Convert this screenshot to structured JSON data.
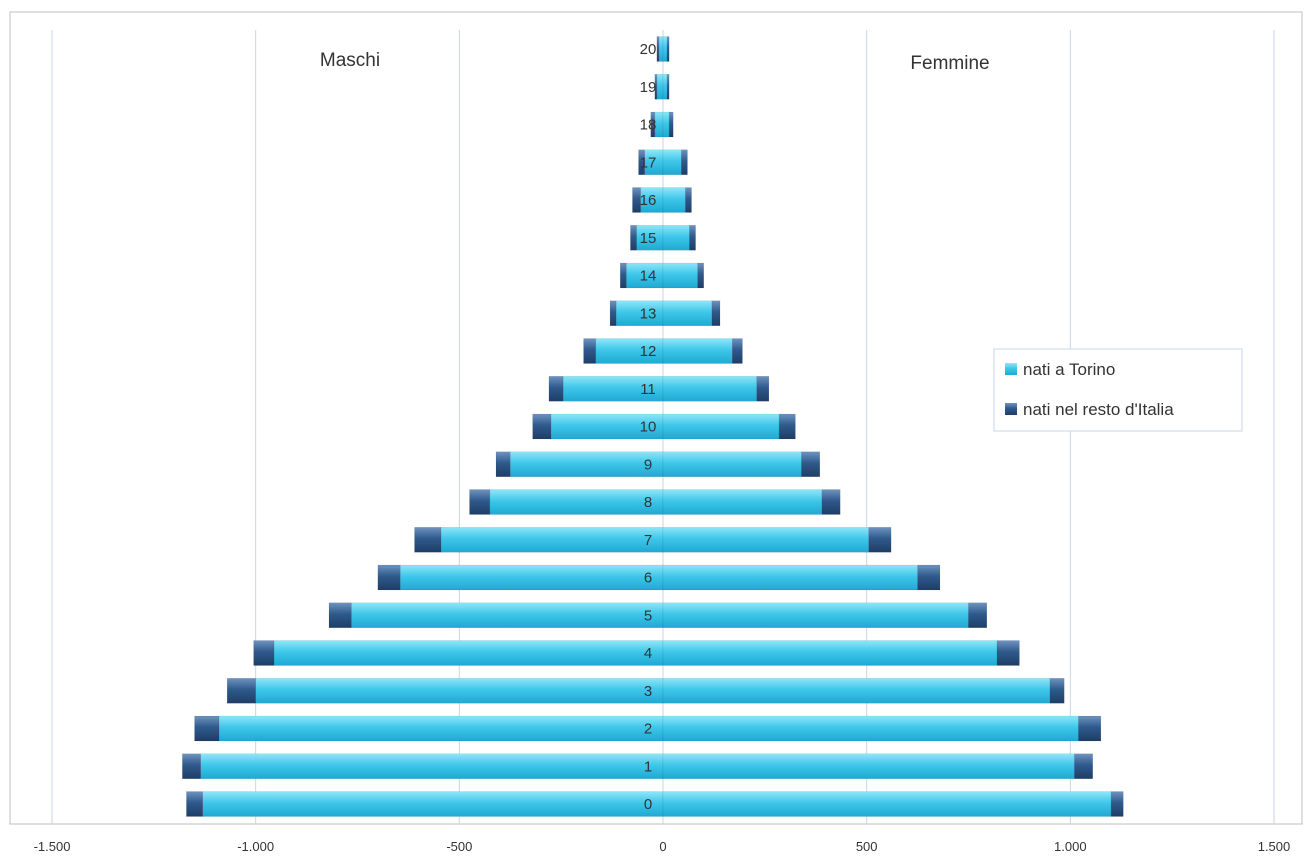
{
  "colors": {
    "torino": "#35C3E8",
    "torino_highlight": "#7FDFF6",
    "resto": "#2E5686",
    "resto_highlight": "#5C82B0",
    "grid": "#C9D5EA",
    "axis_text": "#333333",
    "label_text": "#333333"
  },
  "chart_data": {
    "type": "bar",
    "orientation": "horizontal",
    "stacked": true,
    "categories": [
      "0",
      "1",
      "2",
      "3",
      "4",
      "5",
      "6",
      "7",
      "8",
      "9",
      "10",
      "11",
      "12",
      "13",
      "14",
      "15",
      "16",
      "17",
      "18",
      "19",
      "20"
    ],
    "side_labels": {
      "left": "Maschi",
      "right": "Femmine"
    },
    "series": [
      {
        "name": "nati a Torino",
        "color": "#35C3E8",
        "left_values": [
          -1130,
          -1135,
          -1090,
          -1000,
          -955,
          -765,
          -645,
          -545,
          -425,
          -375,
          -275,
          -245,
          -165,
          -115,
          -90,
          -65,
          -55,
          -45,
          -20,
          -15,
          -10
        ],
        "right_values": [
          1100,
          1010,
          1020,
          950,
          820,
          750,
          625,
          505,
          390,
          340,
          285,
          230,
          170,
          120,
          85,
          65,
          55,
          45,
          15,
          10,
          10
        ]
      },
      {
        "name": "nati nel resto d'Italia",
        "color": "#2E5686",
        "left_values": [
          -40,
          -45,
          -60,
          -70,
          -50,
          -55,
          -55,
          -65,
          -50,
          -35,
          -45,
          -35,
          -30,
          -15,
          -15,
          -15,
          -20,
          -15,
          -10,
          -5,
          -5
        ],
        "right_values": [
          30,
          45,
          55,
          35,
          55,
          45,
          55,
          55,
          45,
          45,
          40,
          30,
          25,
          20,
          15,
          15,
          15,
          15,
          10,
          5,
          5
        ]
      }
    ],
    "x_ticks": [
      -1500,
      -1000,
      -500,
      0,
      500,
      1000,
      1500
    ],
    "x_tick_labels": [
      "-1.500",
      "-1.000",
      "-500",
      "0",
      "500",
      "1.000",
      "1.500"
    ],
    "xlim": [
      -1500,
      1500
    ],
    "grid": true,
    "legend": {
      "placement": "right",
      "entries": [
        "nati a Torino",
        "nati nel resto d'Italia"
      ]
    }
  }
}
